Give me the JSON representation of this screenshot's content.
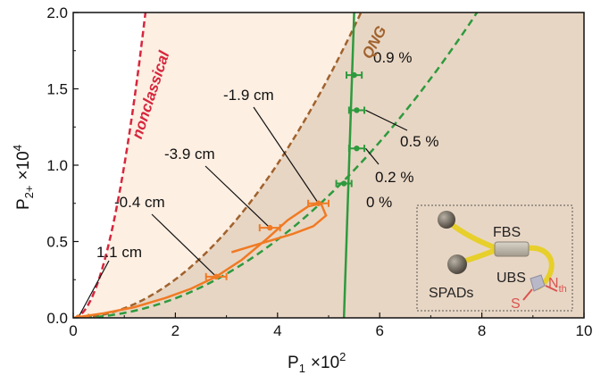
{
  "chart_data": {
    "type": "line",
    "xlabel": "P",
    "xlabel_sub": "1",
    "xlabel_scale": "×10",
    "xlabel_exp": "2",
    "ylabel": "P",
    "ylabel_sub": "2+",
    "ylabel_scale": "×10",
    "ylabel_exp": "4",
    "xlim": [
      0,
      10
    ],
    "ylim": [
      0,
      2.0
    ],
    "xticks": [
      "0",
      "2",
      "4",
      "6",
      "8",
      "10"
    ],
    "yticks": [
      "0.0",
      "0.5",
      "1.0",
      "1.5",
      "2.0"
    ],
    "grid": false,
    "colors": {
      "nonclassical": "#d7263d",
      "qng": "#a0622d",
      "green": "#2e9a3e",
      "orange": "#f07a24",
      "light_region": "#fdefe2",
      "dark_region": "#e8d6c4"
    },
    "curves": {
      "nonclassical_label": "nonclassical",
      "qng_label": "QNG",
      "nonclassical_k": 1.0,
      "qng_k": 0.063,
      "green_dashed_k": 0.032,
      "green_solid": {
        "x0": 5.3,
        "x1": 5.5
      }
    },
    "orange_curve": [
      [
        0.0,
        0.0
      ],
      [
        0.6,
        0.03
      ],
      [
        1.2,
        0.07
      ],
      [
        1.8,
        0.13
      ],
      [
        2.3,
        0.19
      ],
      [
        2.8,
        0.27
      ],
      [
        3.3,
        0.38
      ],
      [
        3.8,
        0.52
      ],
      [
        4.2,
        0.64
      ],
      [
        4.6,
        0.73
      ],
      [
        4.85,
        0.75
      ],
      [
        4.95,
        0.67
      ],
      [
        4.7,
        0.6
      ],
      [
        4.3,
        0.55
      ],
      [
        3.9,
        0.51
      ],
      [
        3.5,
        0.47
      ],
      [
        3.1,
        0.43
      ]
    ],
    "orange_points": [
      {
        "label": "1.1 cm",
        "x": 0.1,
        "y": 0.003,
        "xerr": 0.2
      },
      {
        "label": "-0.4 cm",
        "x": 2.8,
        "y": 0.27,
        "xerr": 0.2
      },
      {
        "label": "-3.9 cm",
        "x": 3.85,
        "y": 0.59,
        "xerr": 0.2
      },
      {
        "label": "-1.9 cm",
        "x": 4.8,
        "y": 0.75,
        "xerr": 0.2
      }
    ],
    "green_points": [
      {
        "label": "0 %",
        "x": 5.3,
        "y": 0.88,
        "xerr": 0.15
      },
      {
        "label": "0.2 %",
        "x": 5.55,
        "y": 1.11,
        "xerr": 0.15
      },
      {
        "label": "0.5 %",
        "x": 5.55,
        "y": 1.36,
        "xerr": 0.15
      },
      {
        "label": "0.9 %",
        "x": 5.5,
        "y": 1.59,
        "xerr": 0.15
      }
    ],
    "inset": {
      "labels": {
        "fbs": "FBS",
        "ubs": "UBS",
        "spads": "SPADs",
        "s": "S",
        "n": "N",
        "n_sub": "th"
      }
    }
  }
}
